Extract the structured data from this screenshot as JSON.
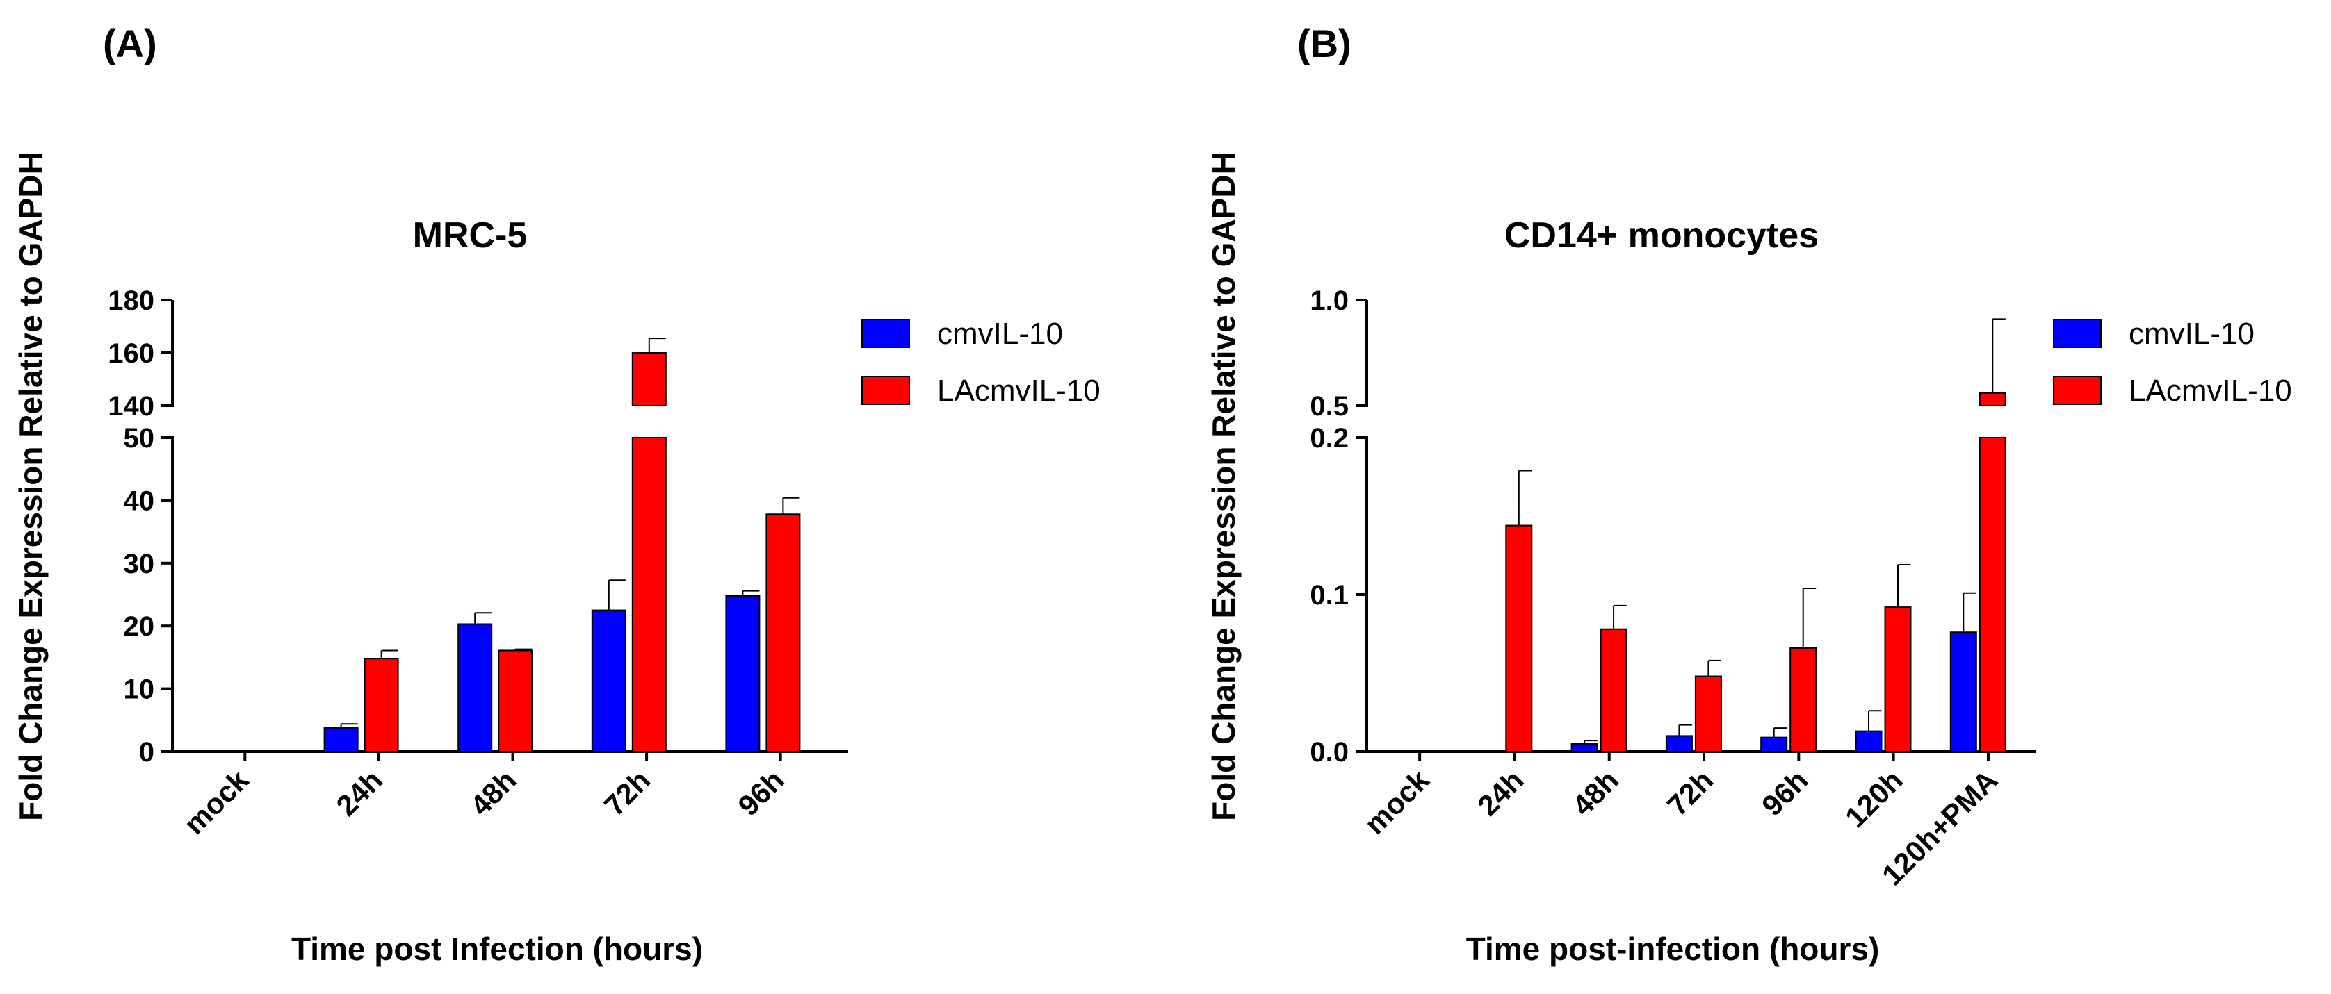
{
  "colors": {
    "series1": "#0000ff",
    "series2": "#ff0000",
    "axis": "#000000"
  },
  "chart_data": [
    {
      "panel_label": "(A)",
      "type": "bar",
      "title": "MRC-5",
      "xlabel": "Time post Infection (hours)",
      "ylabel": "Fold Change Expression Relative to GAPDH",
      "categories": [
        "mock",
        "24h",
        "48h",
        "72h",
        "96h"
      ],
      "series": [
        {
          "name": "cmvIL-10",
          "values": [
            0,
            3.8,
            20.3,
            22.5,
            24.8
          ],
          "errors": [
            0,
            0.6,
            1.8,
            4.8,
            0.8
          ]
        },
        {
          "name": "LAcmvIL-10",
          "values": [
            0,
            14.8,
            16.1,
            160,
            37.8
          ],
          "errors": [
            0,
            1.3,
            0.2,
            5.5,
            2.6
          ]
        }
      ],
      "y_axis": {
        "type": "broken",
        "lower_range": [
          0,
          50
        ],
        "lower_ticks": [
          "0",
          "10",
          "20",
          "30",
          "40",
          "50"
        ],
        "upper_range": [
          140,
          180
        ],
        "upper_ticks": [
          "140",
          "160",
          "180"
        ]
      },
      "legend_position": "right",
      "grid": false
    },
    {
      "panel_label": "(B)",
      "type": "bar",
      "title": "CD14+ monocytes",
      "xlabel": "Time post-infection (hours)",
      "ylabel": "Fold Change Expression Relative to GAPDH",
      "categories": [
        "mock",
        "24h",
        "48h",
        "72h",
        "96h",
        "120h",
        "120h+PMA"
      ],
      "series": [
        {
          "name": "cmvIL-10",
          "values": [
            0,
            0,
            0.005,
            0.01,
            0.009,
            0.013,
            0.076
          ],
          "errors": [
            0,
            0,
            0.002,
            0.007,
            0.006,
            0.013,
            0.025
          ]
        },
        {
          "name": "LAcmvIL-10",
          "values": [
            0,
            0.144,
            0.078,
            0.048,
            0.066,
            0.092,
            0.56
          ],
          "errors": [
            0,
            0.035,
            0.015,
            0.01,
            0.038,
            0.027,
            0.35
          ]
        }
      ],
      "y_axis": {
        "type": "broken",
        "lower_range": [
          0,
          0.2
        ],
        "lower_ticks": [
          "0.0",
          "0.1",
          "0.2"
        ],
        "upper_range": [
          0.5,
          1.0
        ],
        "upper_ticks": [
          "0.5",
          "1.0"
        ]
      },
      "legend_position": "right",
      "grid": false
    }
  ]
}
